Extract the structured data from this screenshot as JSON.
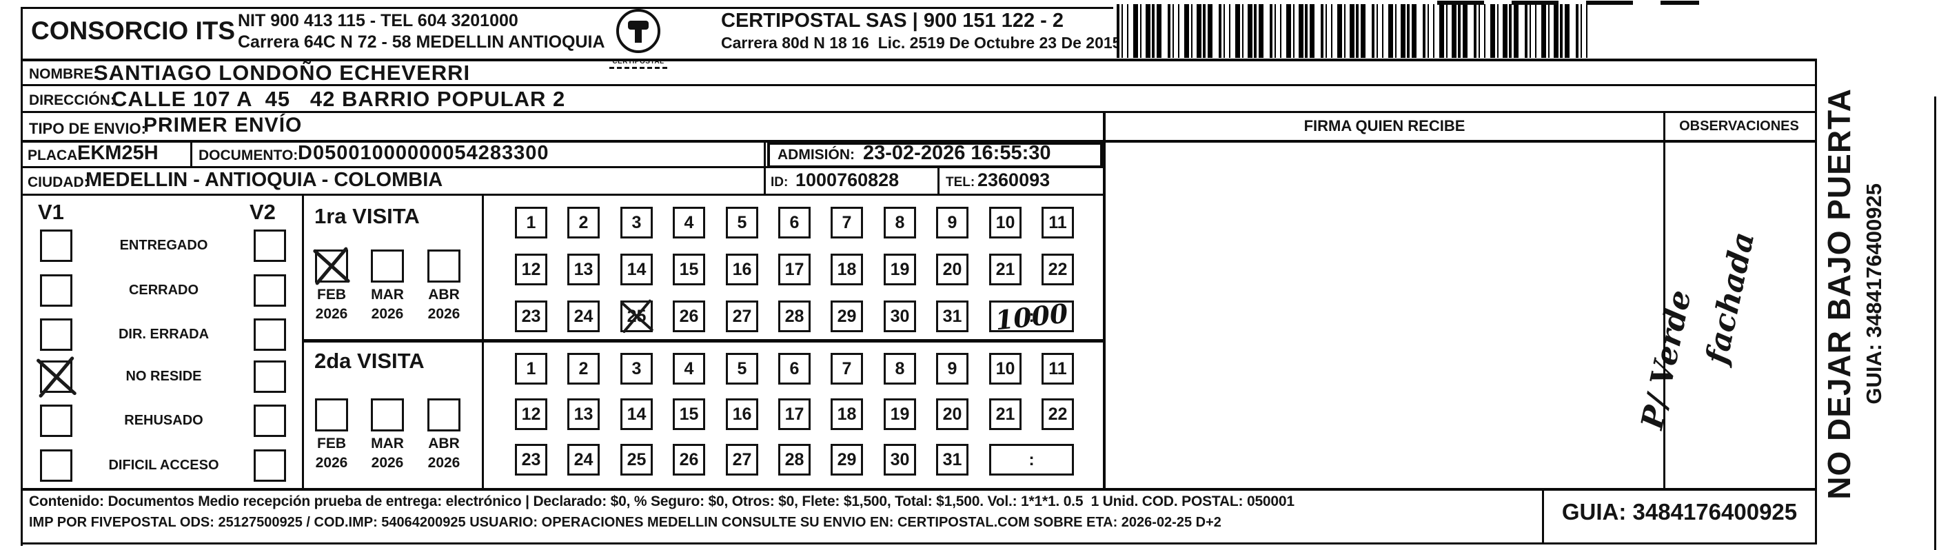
{
  "header": {
    "company": "CONSORCIO ITS",
    "nit_line": "NIT 900 413 115 - TEL 604 3201000",
    "address_line": "Carrera 64C N 72 - 58 MEDELLIN ANTIOQUIA",
    "logo_caption": "CERTIPOSTAL",
    "certipostal_line1": "CERTIPOSTAL SAS | 900 151 122 - 2",
    "certipostal_line2": "Carrera 80d N 18 16  Lic. 2519 De Octubre 23 De 2015"
  },
  "shipment": {
    "nombre_label": "NOMBRE:",
    "nombre": "SANTIAGO LONDOÑO ECHEVERRI",
    "direccion_label": "DIRECCIÓN:",
    "direccion": "CALLE 107 A  45   42 BARRIO POPULAR 2",
    "tipo_label": "TIPO DE ENVIO:",
    "tipo": "PRIMER ENVÍO",
    "placa_label": "PLACA:",
    "placa": "EKM25H",
    "documento_label": "DOCUMENTO:",
    "documento": "D05001000000054283300",
    "admision_label": "ADMISIÓN:",
    "admision": "23-02-2026 16:55:30",
    "ciudad_label": "CIUDAD:",
    "ciudad": "MEDELLIN - ANTIOQUIA - COLOMBIA",
    "id_label": "ID:",
    "id": "1000760828",
    "tel_label": "TEL:",
    "tel": "2360093"
  },
  "signature": {
    "firma_header": "FIRMA QUIEN RECIBE",
    "observaciones_header": "OBSERVACIONES",
    "observaciones_note_line1": "P/ Verde",
    "observaciones_note_line2": "fachada"
  },
  "status_panel": {
    "v1_header": "V1",
    "v2_header": "V2",
    "rows": [
      {
        "label": "ENTREGADO",
        "v1_checked": false,
        "v2_checked": false
      },
      {
        "label": "CERRADO",
        "v1_checked": false,
        "v2_checked": false
      },
      {
        "label": "DIR. ERRADA",
        "v1_checked": false,
        "v2_checked": false
      },
      {
        "label": "NO RESIDE",
        "v1_checked": true,
        "v2_checked": false
      },
      {
        "label": "REHUSADO",
        "v1_checked": false,
        "v2_checked": false
      },
      {
        "label": "DIFICIL ACCESO",
        "v1_checked": false,
        "v2_checked": false
      }
    ]
  },
  "visits": {
    "first": {
      "title": "1ra VISITA",
      "months": [
        {
          "label": "FEB",
          "year": "2026",
          "checked": true
        },
        {
          "label": "MAR",
          "year": "2026",
          "checked": false
        },
        {
          "label": "ABR",
          "year": "2026",
          "checked": false
        }
      ],
      "days": [
        1,
        2,
        3,
        4,
        5,
        6,
        7,
        8,
        9,
        10,
        11,
        12,
        13,
        14,
        15,
        16,
        17,
        18,
        19,
        20,
        21,
        22,
        23,
        24,
        25,
        26,
        27,
        28,
        29,
        30,
        31
      ],
      "crossed_days": [
        25
      ],
      "time_separator": ":",
      "handwritten_time": "1000"
    },
    "second": {
      "title": "2da VISITA",
      "months": [
        {
          "label": "FEB",
          "year": "2026",
          "checked": false
        },
        {
          "label": "MAR",
          "year": "2026",
          "checked": false
        },
        {
          "label": "ABR",
          "year": "2026",
          "checked": false
        }
      ],
      "days": [
        1,
        2,
        3,
        4,
        5,
        6,
        7,
        8,
        9,
        10,
        11,
        12,
        13,
        14,
        15,
        16,
        17,
        18,
        19,
        20,
        21,
        22,
        23,
        24,
        25,
        26,
        27,
        28,
        29,
        30,
        31
      ],
      "crossed_days": [],
      "time_separator": ":",
      "handwritten_time": ""
    }
  },
  "footer": {
    "line1": "Contenido: Documentos Medio recepción prueba de entrega: electrónico | Declarado: $0, % Seguro: $0, Otros: $0, Flete: $1,500, Total: $1,500. Vol.: 1*1*1. 0.5  1 Unid. COD. POSTAL: 050001",
    "line2": "IMP POR FIVEPOSTAL ODS: 25127500925 / COD.IMP: 54064200925 USUARIO: OPERACIONES MEDELLIN CONSULTE SU ENVIO EN: CERTIPOSTAL.COM SOBRE ETA: 2026-02-25 D+2",
    "guia": "GUIA: 3484176400925"
  },
  "side_strip": {
    "warning": "NO DEJAR BAJO PUERTA",
    "guia": "GUIA: 3484176400925"
  }
}
